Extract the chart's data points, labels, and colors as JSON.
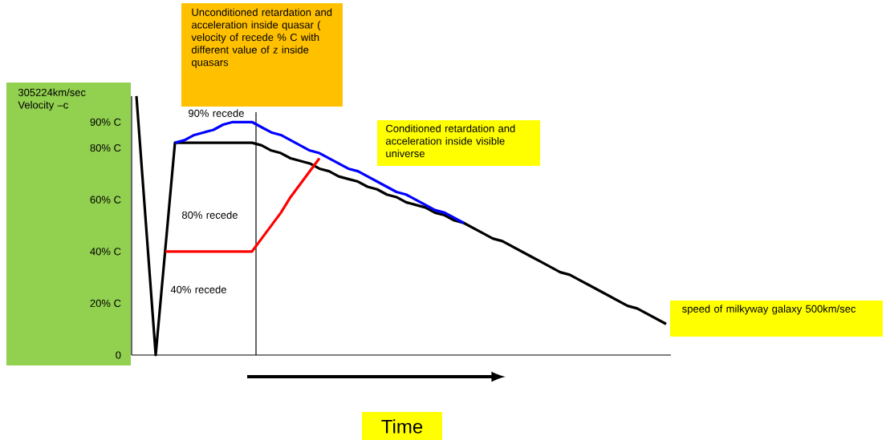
{
  "chart_data": {
    "type": "line",
    "xlabel": "Time",
    "ylabel": "305224km/sec Velocity –c",
    "annotations": [
      "Unconditioned retardation and acceleration inside quasar ( velocity of recede  % C with different value of z inside quasars",
      "Conditioned retardation and acceleration inside visible universe",
      " speed of milkyway galaxy 500km/sec",
      "90% recede",
      "80% recede",
      "40% recede"
    ],
    "categories": [
      null,
      null,
      null,
      null,
      null,
      null,
      null,
      null,
      null,
      null,
      null,
      null,
      null,
      null,
      null,
      null,
      null,
      null,
      null,
      null,
      null,
      null,
      null,
      null,
      null,
      null,
      null,
      null,
      null,
      null,
      null,
      null,
      null,
      null,
      null,
      null,
      null,
      null,
      null,
      null,
      null,
      null,
      null,
      null,
      null,
      null,
      null,
      null,
      null,
      null,
      null,
      null,
      null,
      null,
      null,
      null
    ],
    "series": [
      {
        "color": "#000000",
        "values": [
          100,
          50,
          0,
          41,
          82,
          82,
          82,
          82,
          82,
          82,
          82,
          82,
          82,
          81,
          79,
          78,
          76,
          75,
          74,
          72,
          71,
          69,
          68,
          67,
          65,
          64,
          62,
          61,
          59,
          58,
          57,
          55,
          54,
          52,
          51,
          49,
          47,
          45,
          44,
          42,
          40,
          38,
          36,
          34,
          32,
          31,
          29,
          27,
          25,
          23,
          21,
          19,
          18,
          16,
          14,
          12
        ]
      },
      {
        "color": "#0000ff",
        "values": [
          null,
          null,
          null,
          null,
          82,
          83,
          85,
          86,
          87,
          89,
          90,
          90,
          90,
          88,
          86,
          85,
          83,
          81,
          79,
          78,
          76,
          74,
          72,
          71,
          69,
          67,
          65,
          63,
          62,
          60,
          58,
          56,
          55,
          53,
          51,
          null,
          null,
          null,
          null,
          null,
          null,
          null,
          null,
          null,
          null,
          null,
          null,
          null,
          null,
          null,
          null,
          null,
          null,
          null,
          null,
          null
        ]
      },
      {
        "color": "#ff0000",
        "values": [
          null,
          null,
          null,
          40,
          40,
          40,
          40,
          40,
          40,
          40,
          40,
          40,
          40,
          45,
          50,
          55,
          61,
          66,
          71,
          76,
          null,
          null,
          null,
          null,
          null,
          null,
          null,
          null,
          null,
          null,
          null,
          null,
          null,
          null,
          null,
          null,
          null,
          null,
          null,
          null,
          null,
          null,
          null,
          null,
          null,
          null,
          null,
          null,
          null,
          null,
          null,
          null,
          null,
          null,
          null,
          null
        ]
      }
    ],
    "ylim": [
      0,
      100
    ],
    "yticks": [
      {
        "value": 0,
        "label": "0"
      },
      {
        "value": 20,
        "label": "20% C"
      },
      {
        "value": 40,
        "label": "40% C"
      },
      {
        "value": 60,
        "label": "60% C"
      },
      {
        "value": 80,
        "label": "80% C"
      },
      {
        "value": 90,
        "label": "90% C"
      }
    ],
    "tick_labels": "y",
    "grid": false,
    "marker": "none",
    "line_style": "solid"
  }
}
